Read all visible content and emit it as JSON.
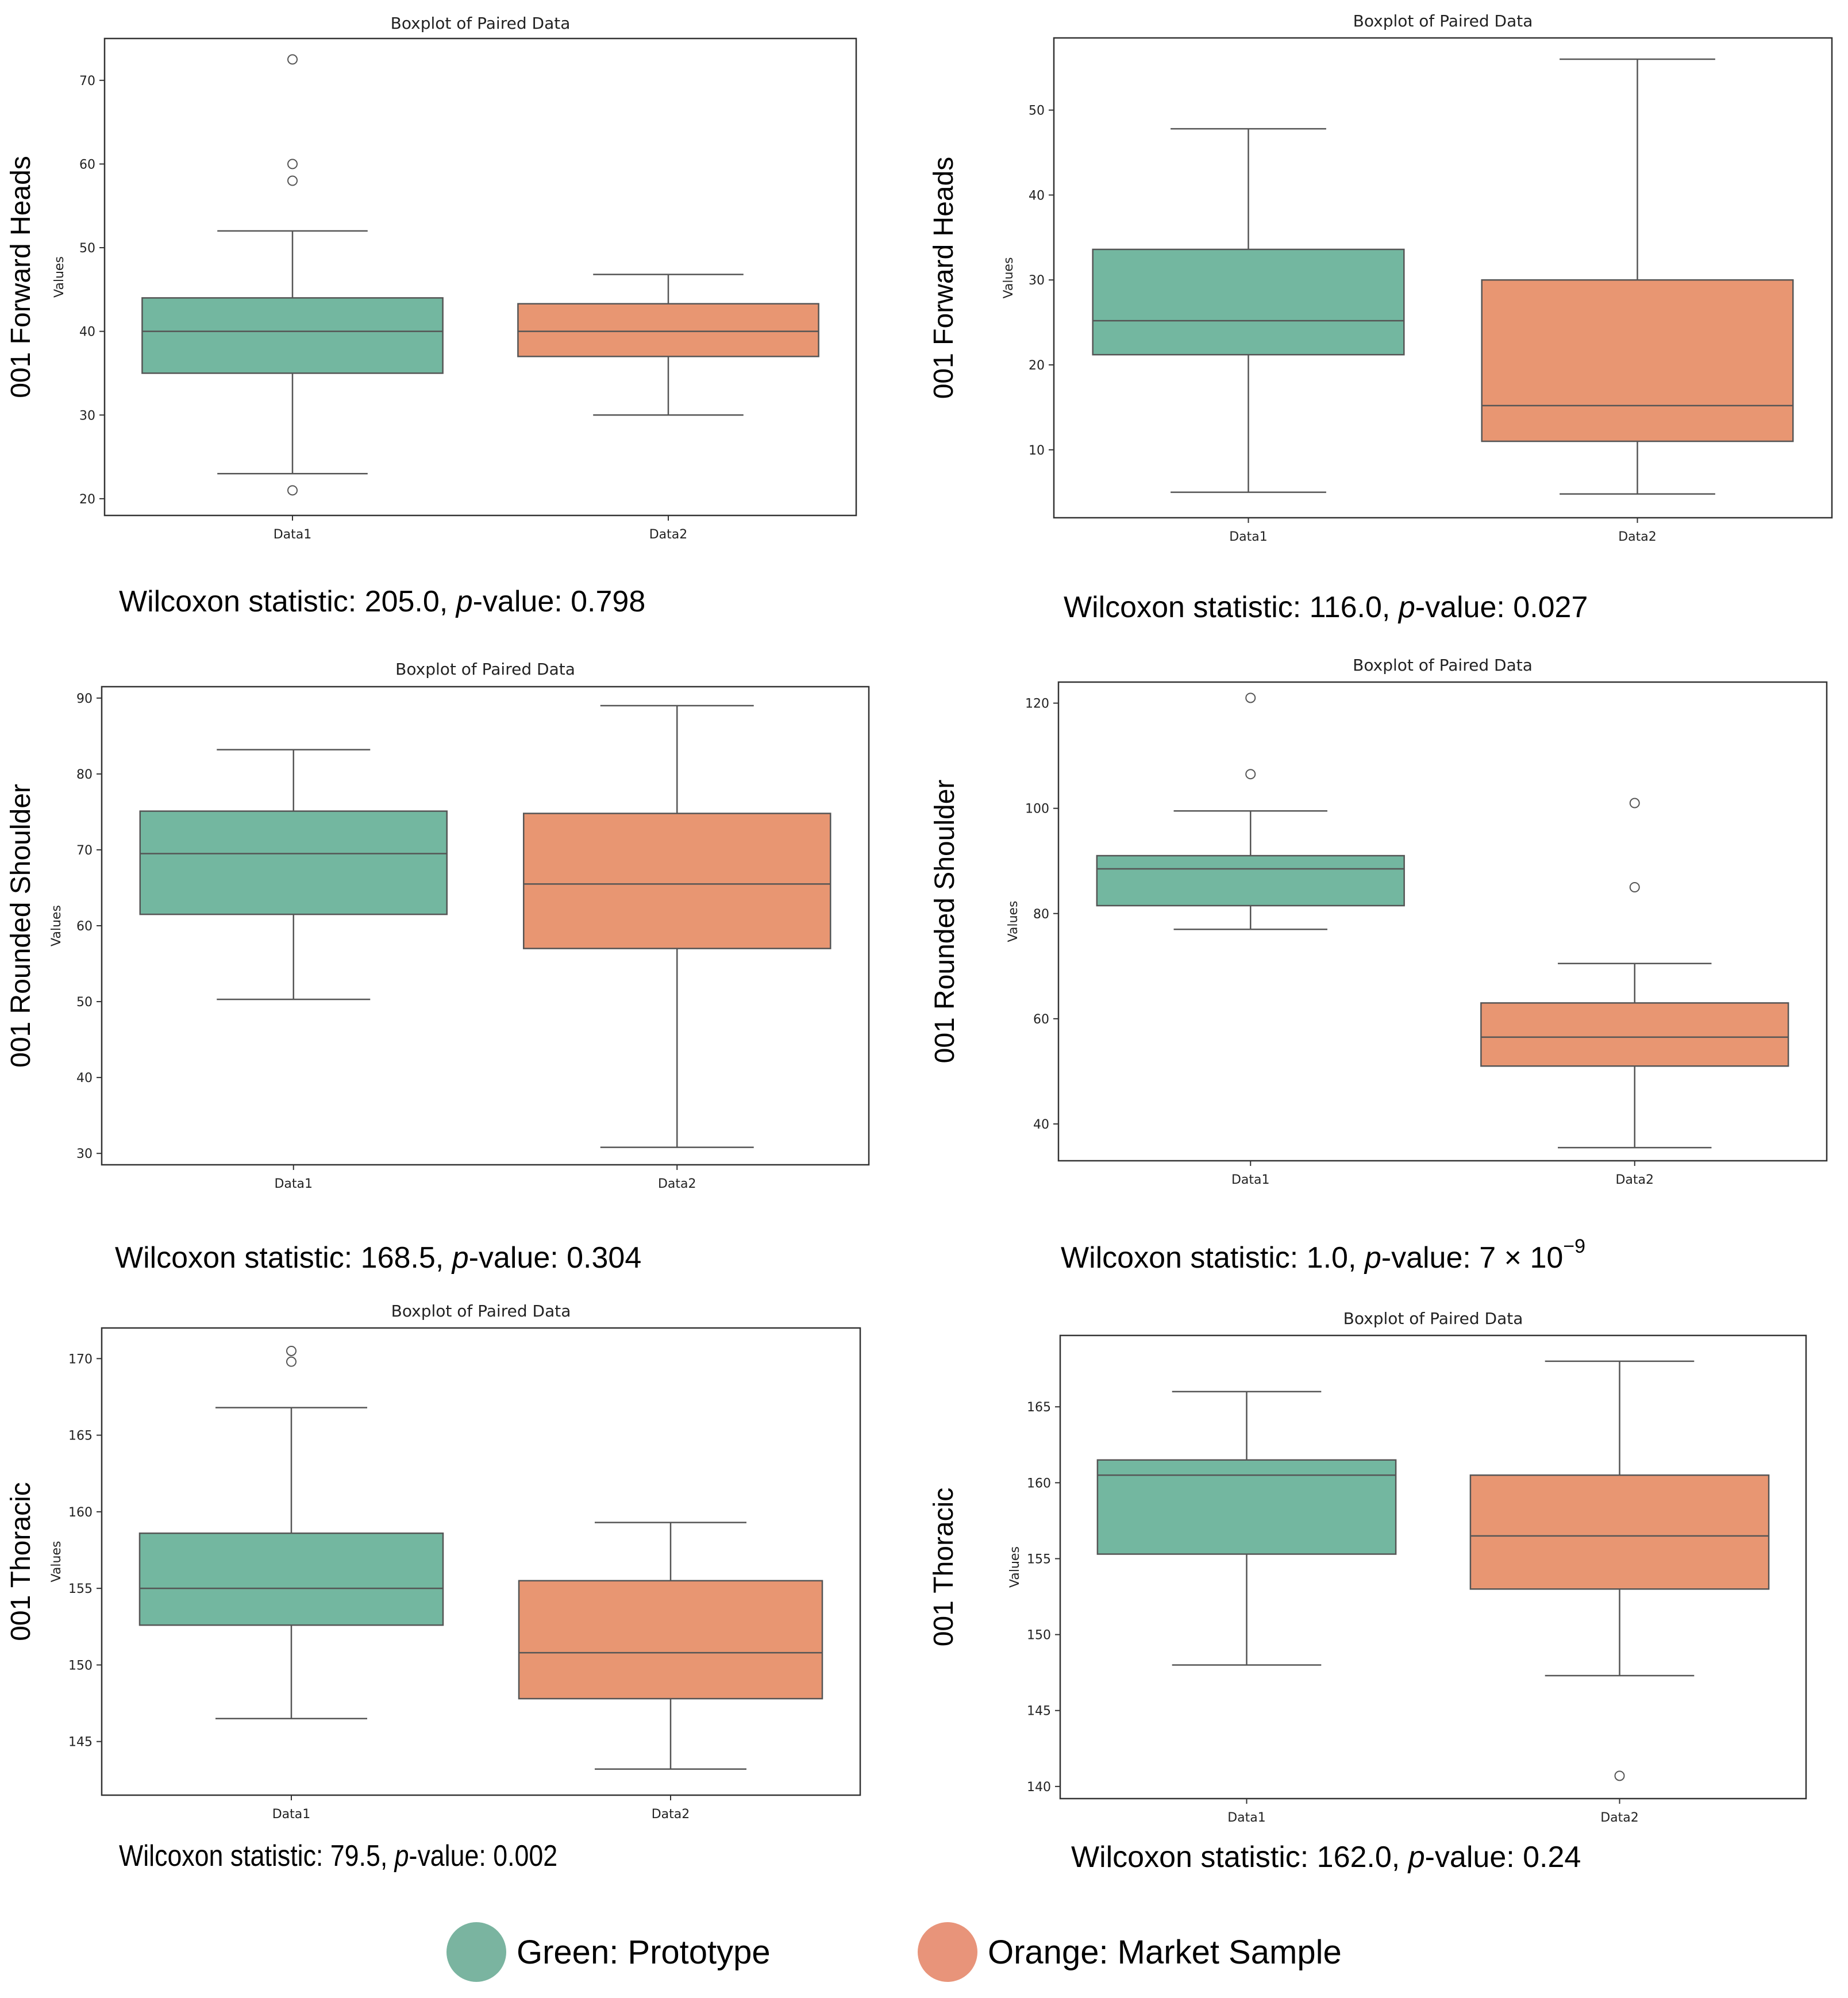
{
  "colors": {
    "green": "#73b7a0",
    "orange": "#e89672",
    "line": "#555555",
    "frame": "#333333"
  },
  "legend": [
    {
      "label": "Green: Prototype",
      "color": "#7ab4a0"
    },
    {
      "label": "Orange: Market Sample",
      "color": "#e8947a"
    }
  ],
  "chart_data": [
    {
      "type": "boxplot",
      "title": "Boxplot of Paired Data",
      "row_label": "001 Forward Heads",
      "ylabel": "Values",
      "categories": [
        "Data1",
        "Data2"
      ],
      "ylim": [
        18,
        75
      ],
      "yticks": [
        20,
        30,
        40,
        50,
        60,
        70
      ],
      "boxes": [
        {
          "whisker_low": 23,
          "q1": 35,
          "median": 40,
          "q3": 44,
          "whisker_high": 52,
          "outliers": [
            21,
            58,
            60,
            72.5
          ]
        },
        {
          "whisker_low": 30,
          "q1": 37,
          "median": 40,
          "q3": 43.3,
          "whisker_high": 46.8,
          "outliers": []
        }
      ],
      "stat": {
        "prefix": "Wilcoxon statistic: 205.0, ",
        "p_label": "p",
        "p_suffix": "-value: 0.798"
      }
    },
    {
      "type": "boxplot",
      "title": "Boxplot of Paired Data",
      "row_label": "001 Forward Heads",
      "ylabel": "Values",
      "categories": [
        "Data1",
        "Data2"
      ],
      "ylim": [
        2,
        58.5
      ],
      "yticks": [
        10,
        20,
        30,
        40,
        50
      ],
      "boxes": [
        {
          "whisker_low": 5,
          "q1": 21.2,
          "median": 25.2,
          "q3": 33.6,
          "whisker_high": 47.8,
          "outliers": []
        },
        {
          "whisker_low": 4.8,
          "q1": 11,
          "median": 15.2,
          "q3": 30,
          "whisker_high": 56,
          "outliers": []
        }
      ],
      "stat": {
        "prefix": "Wilcoxon statistic: 116.0, ",
        "p_label": "p",
        "p_suffix": "-value: 0.027"
      }
    },
    {
      "type": "boxplot",
      "title": "Boxplot of Paired Data",
      "row_label": "001 Rounded Shoulder",
      "ylabel": "Values",
      "categories": [
        "Data1",
        "Data2"
      ],
      "ylim": [
        28.5,
        91.5
      ],
      "yticks": [
        30,
        40,
        50,
        60,
        70,
        80,
        90
      ],
      "boxes": [
        {
          "whisker_low": 50.3,
          "q1": 61.5,
          "median": 69.5,
          "q3": 75.1,
          "whisker_high": 83.2,
          "outliers": []
        },
        {
          "whisker_low": 30.8,
          "q1": 57,
          "median": 65.5,
          "q3": 74.8,
          "whisker_high": 89,
          "outliers": []
        }
      ],
      "stat": {
        "prefix": "Wilcoxon statistic: 168.5, ",
        "p_label": "p",
        "p_suffix": "-value: 0.304"
      }
    },
    {
      "type": "boxplot",
      "title": "Boxplot of Paired Data",
      "row_label": "001 Rounded Shoulder",
      "ylabel": "Values",
      "categories": [
        "Data1",
        "Data2"
      ],
      "ylim": [
        33,
        124
      ],
      "yticks": [
        40,
        60,
        80,
        100,
        120
      ],
      "boxes": [
        {
          "whisker_low": 77,
          "q1": 81.5,
          "median": 88.5,
          "q3": 91,
          "whisker_high": 99.5,
          "outliers": [
            106.5,
            121
          ]
        },
        {
          "whisker_low": 35.5,
          "q1": 51,
          "median": 56.5,
          "q3": 63,
          "whisker_high": 70.5,
          "outliers": [
            85,
            101
          ]
        }
      ],
      "stat": {
        "prefix": "Wilcoxon statistic: 1.0, ",
        "p_label": "p",
        "p_suffix": "-value: 7 × 10",
        "p_exp": "−9"
      }
    },
    {
      "type": "boxplot",
      "title": "Boxplot of Paired Data",
      "row_label": "001 Thoracic",
      "ylabel": "Values",
      "categories": [
        "Data1",
        "Data2"
      ],
      "ylim": [
        141.5,
        172
      ],
      "yticks": [
        145,
        150,
        155,
        160,
        165,
        170
      ],
      "boxes": [
        {
          "whisker_low": 146.5,
          "q1": 152.6,
          "median": 155,
          "q3": 158.6,
          "whisker_high": 166.8,
          "outliers": [
            169.8,
            170.5
          ]
        },
        {
          "whisker_low": 143.2,
          "q1": 147.8,
          "median": 150.8,
          "q3": 155.5,
          "whisker_high": 159.3,
          "outliers": []
        }
      ],
      "stat": {
        "prefix": "Wilcoxon statistic: 79.5, ",
        "p_label": "p",
        "p_suffix": "-value: 0.002"
      }
    },
    {
      "type": "boxplot",
      "title": "Boxplot of Paired Data",
      "row_label": "001 Thoracic",
      "ylabel": "Values",
      "categories": [
        "Data1",
        "Data2"
      ],
      "ylim": [
        139.2,
        169.7
      ],
      "yticks": [
        140,
        145,
        150,
        155,
        160,
        165
      ],
      "boxes": [
        {
          "whisker_low": 148,
          "q1": 155.3,
          "median": 160.5,
          "q3": 161.5,
          "whisker_high": 166,
          "outliers": []
        },
        {
          "whisker_low": 147.3,
          "q1": 153,
          "median": 156.5,
          "q3": 160.5,
          "whisker_high": 168,
          "outliers": [
            140.7
          ]
        }
      ],
      "stat": {
        "prefix": "Wilcoxon statistic: 162.0, ",
        "p_label": "p",
        "p_suffix": "-value: 0.24"
      }
    }
  ]
}
